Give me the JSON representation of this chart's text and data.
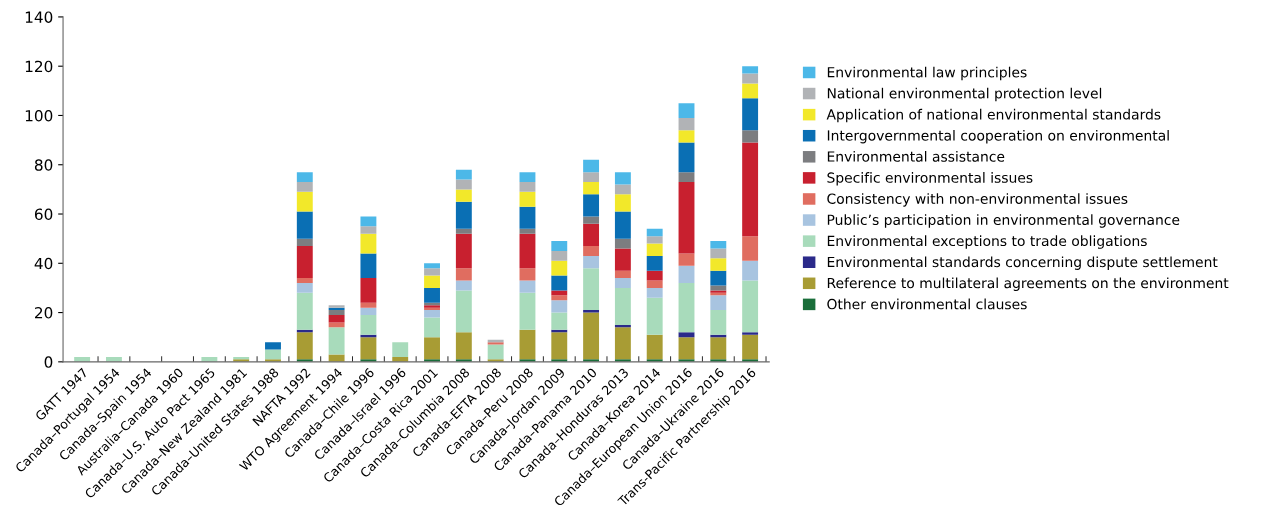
{
  "chart_data": {
    "type": "bar",
    "stacked": true,
    "categories": [
      "GATT 1947",
      "Canada–Portugal 1954",
      "Canada–Spain 1954",
      "Australia–Canada 1960",
      "Canada–U.S. Auto Pact 1965",
      "Canada–New Zealand 1981",
      "Canada–United States 1988",
      "NAFTA 1992",
      "WTO Agreement 1994",
      "Canada–Chile 1996",
      "Canada–Israel 1996",
      "Canada–Costa Rica 2001",
      "Canada–Columbia 2008",
      "Canada–EFTA 2008",
      "Canada–Peru 2008",
      "Canada–Jordan 2009",
      "Canada–Panama 2010",
      "Canada–Honduras 2013",
      "Canada–Korea 2014",
      "Canada–European Union 2016",
      "Canada–Ukraine 2016",
      "Trans-Pacific Partnership 2016"
    ],
    "series": [
      {
        "name": "Other environmental clauses",
        "color": "#1a6e3a",
        "values": [
          0,
          0,
          0,
          0,
          0,
          0,
          0,
          1,
          0,
          1,
          0,
          1,
          1,
          0,
          1,
          1,
          1,
          1,
          1,
          1,
          1,
          1
        ]
      },
      {
        "name": "Reference to multilateral agreements on the environment",
        "color": "#a89c34",
        "values": [
          0,
          0,
          0,
          0,
          0,
          1,
          1,
          11,
          3,
          9,
          2,
          9,
          11,
          1,
          12,
          11,
          19,
          13,
          10,
          9,
          9,
          10
        ]
      },
      {
        "name": "Environmental standards concerning dispute settlement",
        "color": "#2b2a8a",
        "values": [
          0,
          0,
          0,
          0,
          0,
          0,
          0,
          1,
          0,
          1,
          0,
          0,
          0,
          0,
          0,
          1,
          1,
          1,
          0,
          2,
          1,
          1
        ]
      },
      {
        "name": "Environmental exceptions to trade obligations",
        "color": "#a8dbbb",
        "values": [
          2,
          2,
          0,
          0,
          2,
          1,
          4,
          15,
          11,
          8,
          6,
          8,
          17,
          6,
          15,
          7,
          17,
          15,
          15,
          20,
          10,
          21
        ]
      },
      {
        "name": "Public’s participation in environmental governance",
        "color": "#a8c4e0",
        "values": [
          0,
          0,
          0,
          0,
          0,
          0,
          0,
          4,
          0,
          3,
          0,
          3,
          4,
          0,
          5,
          5,
          5,
          4,
          4,
          7,
          6,
          8
        ]
      },
      {
        "name": "Consistency with non-environmental issues",
        "color": "#e06d60",
        "values": [
          0,
          0,
          0,
          0,
          0,
          0,
          0,
          2,
          2,
          2,
          0,
          1,
          5,
          1,
          5,
          2,
          4,
          3,
          3,
          5,
          1,
          10
        ]
      },
      {
        "name": "Specific environmental issues",
        "color": "#c8202f",
        "values": [
          0,
          0,
          0,
          0,
          0,
          0,
          0,
          13,
          3,
          10,
          0,
          1,
          14,
          0,
          14,
          2,
          9,
          9,
          4,
          29,
          1,
          38
        ]
      },
      {
        "name": "Environmental assistance",
        "color": "#7c7d80",
        "values": [
          0,
          0,
          0,
          0,
          0,
          0,
          0,
          3,
          2,
          0,
          0,
          1,
          2,
          0,
          2,
          0,
          3,
          4,
          0,
          4,
          2,
          5
        ]
      },
      {
        "name": "Intergovernmental cooperation on environmental",
        "color": "#0a6fb4",
        "values": [
          0,
          0,
          0,
          0,
          0,
          0,
          3,
          11,
          1,
          10,
          0,
          6,
          11,
          0,
          9,
          6,
          9,
          11,
          6,
          12,
          6,
          13
        ]
      },
      {
        "name": "Application of national environmental standards",
        "color": "#f2e82a",
        "values": [
          0,
          0,
          0,
          0,
          0,
          0,
          0,
          8,
          0,
          8,
          0,
          5,
          5,
          0,
          6,
          6,
          5,
          7,
          5,
          5,
          5,
          6
        ]
      },
      {
        "name": "National environmental protection level",
        "color": "#b1b3b6",
        "values": [
          0,
          0,
          0,
          0,
          0,
          0,
          0,
          4,
          1,
          3,
          0,
          3,
          4,
          1,
          4,
          4,
          4,
          4,
          3,
          5,
          4,
          4
        ]
      },
      {
        "name": "Environmental law principles",
        "color": "#4cb8e8",
        "values": [
          0,
          0,
          0,
          0,
          0,
          0,
          0,
          4,
          0,
          4,
          0,
          2,
          4,
          0,
          4,
          4,
          5,
          5,
          3,
          6,
          3,
          3
        ]
      }
    ],
    "ylim": [
      0,
      140
    ],
    "yticks": [
      0,
      20,
      40,
      60,
      80,
      100,
      120,
      140
    ],
    "grid": false,
    "legend": "right"
  }
}
